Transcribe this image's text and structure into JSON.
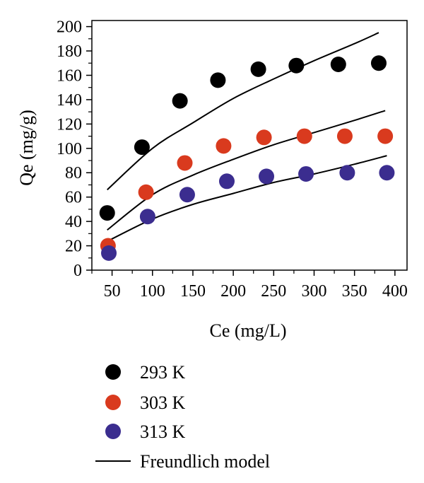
{
  "chart_data": {
    "type": "scatter",
    "xlabel": "Ce (mg/L)",
    "ylabel": "Qe (mg/g)",
    "xlim": [
      25,
      415
    ],
    "ylim": [
      0,
      205
    ],
    "x_ticks": [
      50,
      100,
      150,
      200,
      250,
      300,
      350,
      400
    ],
    "y_ticks": [
      0,
      20,
      40,
      60,
      80,
      100,
      120,
      140,
      160,
      180,
      200
    ],
    "grid": false,
    "legend_position": "below",
    "series": [
      {
        "name": "293 K",
        "color": "#000000",
        "x": [
          44,
          87,
          134,
          181,
          231,
          278,
          330,
          380
        ],
        "y": [
          47,
          101,
          139,
          156,
          165,
          168,
          169,
          170
        ]
      },
      {
        "name": "303 K",
        "color": "#d93a1e",
        "x": [
          45,
          92,
          140,
          188,
          238,
          288,
          338,
          388
        ],
        "y": [
          20,
          64,
          88,
          102,
          109,
          110,
          110,
          110
        ]
      },
      {
        "name": "313 K",
        "color": "#3b2d8f",
        "x": [
          46,
          94,
          143,
          192,
          241,
          290,
          341,
          390
        ],
        "y": [
          14,
          44,
          62,
          73,
          77,
          79,
          80,
          80
        ]
      }
    ],
    "fit_lines": [
      {
        "name": "Freundlich model",
        "color": "#000000",
        "curves": [
          {
            "x": [
              44,
              100,
              150,
              200,
              250,
              300,
              350,
              380
            ],
            "y": [
              66,
              100,
              121,
              141,
              157,
              172,
              186,
              195
            ]
          },
          {
            "x": [
              44,
              100,
              150,
              200,
              250,
              300,
              350,
              388
            ],
            "y": [
              33,
              62,
              78,
              91,
              103,
              113,
              123,
              131
            ]
          },
          {
            "x": [
              45,
              100,
              150,
              200,
              250,
              300,
              350,
              390
            ],
            "y": [
              24,
              42,
              54,
              63,
              72,
              79,
              87,
              94
            ]
          }
        ]
      }
    ]
  },
  "legend": {
    "items": [
      {
        "label": "293 K",
        "color": "#000000",
        "kind": "marker"
      },
      {
        "label": "303 K",
        "color": "#d93a1e",
        "kind": "marker"
      },
      {
        "label": "313 K",
        "color": "#3b2d8f",
        "kind": "marker"
      },
      {
        "label": "Freundlich model",
        "color": "#000000",
        "kind": "line"
      }
    ]
  }
}
